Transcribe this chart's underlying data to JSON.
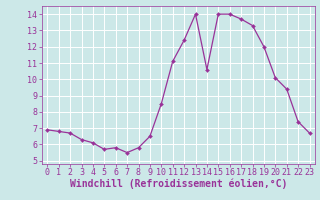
{
  "x": [
    0,
    1,
    2,
    3,
    4,
    5,
    6,
    7,
    8,
    9,
    10,
    11,
    12,
    13,
    14,
    15,
    16,
    17,
    18,
    19,
    20,
    21,
    22,
    23
  ],
  "y": [
    6.9,
    6.8,
    6.7,
    6.3,
    6.1,
    5.7,
    5.8,
    5.5,
    5.8,
    6.5,
    8.5,
    11.1,
    12.4,
    14.0,
    10.6,
    14.0,
    14.0,
    13.7,
    13.3,
    12.0,
    10.1,
    9.4,
    7.4,
    6.7
  ],
  "line_color": "#993399",
  "marker_color": "#993399",
  "bg_color": "#cce8e8",
  "grid_color": "#ffffff",
  "xlabel": "Windchill (Refroidissement éolien,°C)",
  "xlabel_color": "#993399",
  "xlim": [
    -0.5,
    23.5
  ],
  "ylim": [
    4.8,
    14.5
  ],
  "yticks": [
    5,
    6,
    7,
    8,
    9,
    10,
    11,
    12,
    13,
    14
  ],
  "xticks": [
    0,
    1,
    2,
    3,
    4,
    5,
    6,
    7,
    8,
    9,
    10,
    11,
    12,
    13,
    14,
    15,
    16,
    17,
    18,
    19,
    20,
    21,
    22,
    23
  ],
  "tick_color": "#993399",
  "tick_fontsize": 6.0,
  "xlabel_fontsize": 7.0,
  "marker_size": 2.0,
  "line_width": 0.9
}
